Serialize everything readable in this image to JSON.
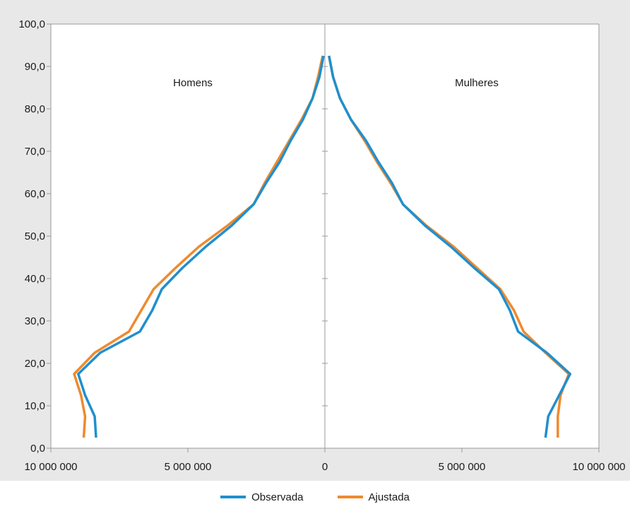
{
  "chart_data": {
    "type": "line",
    "title": "",
    "panels": {
      "left_label": "Homens",
      "right_label": "Mulheres"
    },
    "x_axis": {
      "range": [
        -10000000,
        10000000
      ],
      "ticks": [
        -10000000,
        -5000000,
        0,
        5000000,
        10000000
      ],
      "tick_labels": [
        "10 000 000",
        "5 000 000",
        "0",
        "5 000 000",
        "10 000 000"
      ]
    },
    "y_axis": {
      "range": [
        0,
        100
      ],
      "ticks": [
        0,
        10,
        20,
        30,
        40,
        50,
        60,
        70,
        80,
        90,
        100
      ],
      "tick_labels": [
        "0,0",
        "10,0",
        "20,0",
        "30,0",
        "40,0",
        "50,0",
        "60,0",
        "70,0",
        "80,0",
        "90,0",
        "100,0"
      ]
    },
    "y": [
      2.5,
      7.5,
      12.5,
      17.5,
      22.5,
      27.5,
      32.5,
      37.5,
      42.5,
      47.5,
      52.5,
      57.5,
      62.5,
      67.5,
      72.5,
      77.5,
      82.5,
      87.5,
      92.5
    ],
    "series": [
      {
        "name": "Observada",
        "color": "#1f8fce",
        "homens": [
          8350000,
          8400000,
          8750000,
          9000000,
          8200000,
          6750000,
          6300000,
          5950000,
          5200000,
          4350000,
          3400000,
          2600000,
          2150000,
          1650000,
          1250000,
          800000,
          450000,
          200000,
          50000
        ],
        "mulheres": [
          8050000,
          8150000,
          8550000,
          8950000,
          8100000,
          7050000,
          6750000,
          6350000,
          5450000,
          4600000,
          3650000,
          2850000,
          2450000,
          1950000,
          1500000,
          950000,
          550000,
          300000,
          150000
        ]
      },
      {
        "name": "Ajustada",
        "color": "#ef8a2e",
        "homens": [
          8800000,
          8750000,
          8900000,
          9150000,
          8400000,
          7150000,
          6700000,
          6250000,
          5450000,
          4600000,
          3550000,
          2600000,
          2200000,
          1750000,
          1300000,
          850000,
          450000,
          250000,
          80000
        ],
        "mulheres": [
          8500000,
          8500000,
          8600000,
          8900000,
          8050000,
          7250000,
          6900000,
          6400000,
          5550000,
          4700000,
          3700000,
          2850000,
          2400000,
          1900000,
          1450000,
          950000,
          550000,
          300000,
          150000
        ]
      }
    ]
  },
  "legend": [
    {
      "label": "Observada",
      "color": "#1f8fce"
    },
    {
      "label": "Ajustada",
      "color": "#ef8a2e"
    }
  ]
}
